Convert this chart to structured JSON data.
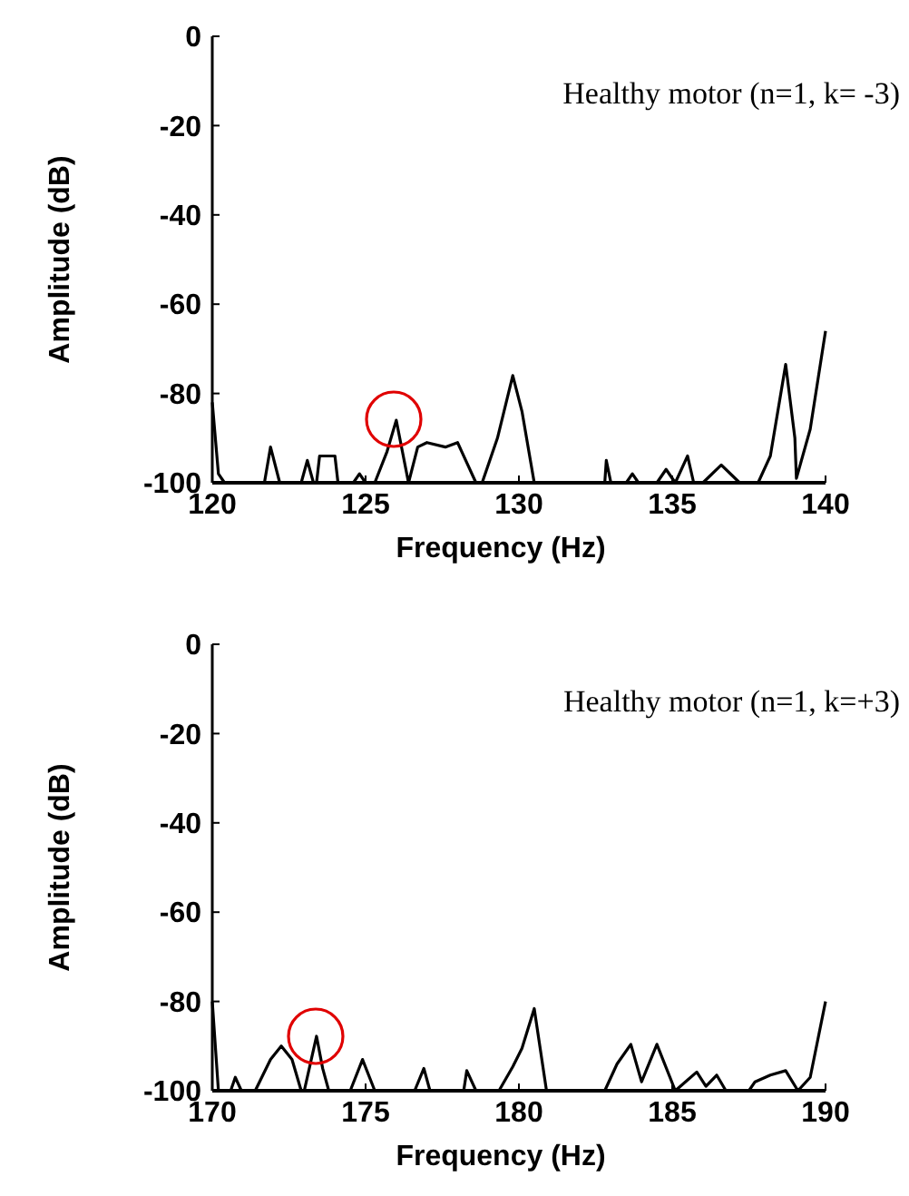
{
  "chart_data": [
    {
      "type": "line",
      "xlabel": "Frequency (Hz)",
      "ylabel": "Amplitude (dB)",
      "annotations": [
        "Healthy motor (n=1, k= -3)"
      ],
      "xlim": [
        120,
        140
      ],
      "ylim": [
        -100,
        0
      ],
      "xticks": [
        120,
        125,
        130,
        135,
        140
      ],
      "yticks": [
        0,
        -20,
        -40,
        -60,
        -80,
        -100
      ],
      "grid": false,
      "line_style": "solid",
      "series": [
        {
          "color": "#000000",
          "x": [
            120,
            120.2,
            120.4,
            121.7,
            121.9,
            122.2,
            122.9,
            123.1,
            123.3,
            123.4,
            123.5,
            124.0,
            124.1,
            124.6,
            124.8,
            125.0,
            125.3,
            125.7,
            126.0,
            126.2,
            126.4,
            126.7,
            127.0,
            127.6,
            128.0,
            128.6,
            128.8,
            129.3,
            129.8,
            130.1,
            130.5,
            132.8,
            132.85,
            133.0,
            133.5,
            133.7,
            133.9,
            134.5,
            134.8,
            135.1,
            135.5,
            135.7,
            136.0,
            136.6,
            137.2,
            137.8,
            138.2,
            138.7,
            139.0,
            139.05,
            139.5,
            140
          ],
          "values": [
            -82,
            -98,
            -100,
            -100,
            -92,
            -100,
            -100,
            -95,
            -100,
            -100,
            -94,
            -94,
            -100,
            -100,
            -98,
            -100,
            -100,
            -93,
            -86,
            -93,
            -100,
            -92,
            -91,
            -92,
            -91,
            -100,
            -100,
            -90,
            -76,
            -84,
            -100,
            -100,
            -95,
            -100,
            -100,
            -98,
            -100,
            -100,
            -97,
            -100,
            -94,
            -100,
            -100,
            -96,
            -100,
            -100,
            -94,
            -73.5,
            -90,
            -99,
            -88,
            -66
          ]
        }
      ]
    },
    {
      "type": "line",
      "xlabel": "Frequency (Hz)",
      "ylabel": "Amplitude (dB)",
      "annotations": [
        "Healthy motor (n=1, k=+3)"
      ],
      "xlim": [
        170,
        190
      ],
      "ylim": [
        -100,
        0
      ],
      "xticks": [
        170,
        175,
        180,
        185,
        190
      ],
      "yticks": [
        0,
        -20,
        -40,
        -60,
        -80,
        -100
      ],
      "grid": false,
      "line_style": "solid",
      "series": [
        {
          "color": "#000000",
          "x": [
            170,
            170.2,
            170.6,
            170.75,
            170.95,
            171.4,
            171.9,
            172.25,
            172.6,
            172.9,
            173.0,
            173.4,
            173.6,
            173.8,
            174.5,
            174.9,
            175.3,
            176.6,
            176.9,
            177.1,
            178.2,
            178.3,
            178.6,
            179.35,
            179.8,
            180.1,
            180.5,
            180.9,
            182.8,
            183.2,
            183.65,
            184.0,
            184.5,
            185.1,
            185.8,
            186.1,
            186.45,
            186.75,
            187.5,
            187.7,
            188.2,
            188.7,
            189.1,
            189.5,
            190
          ],
          "values": [
            -80,
            -100,
            -100,
            -97,
            -100,
            -100,
            -93,
            -90,
            -93,
            -100,
            -100,
            -87.8,
            -95,
            -100,
            -100,
            -93,
            -100,
            -100,
            -95,
            -100,
            -100,
            -95.5,
            -100,
            -100,
            -94.6,
            -90.5,
            -81.6,
            -100,
            -100,
            -94,
            -89.6,
            -98,
            -89.6,
            -100,
            -95.8,
            -99,
            -96.5,
            -100,
            -100,
            -98,
            -96.5,
            -95.5,
            -100,
            -97,
            -80
          ]
        }
      ]
    }
  ]
}
